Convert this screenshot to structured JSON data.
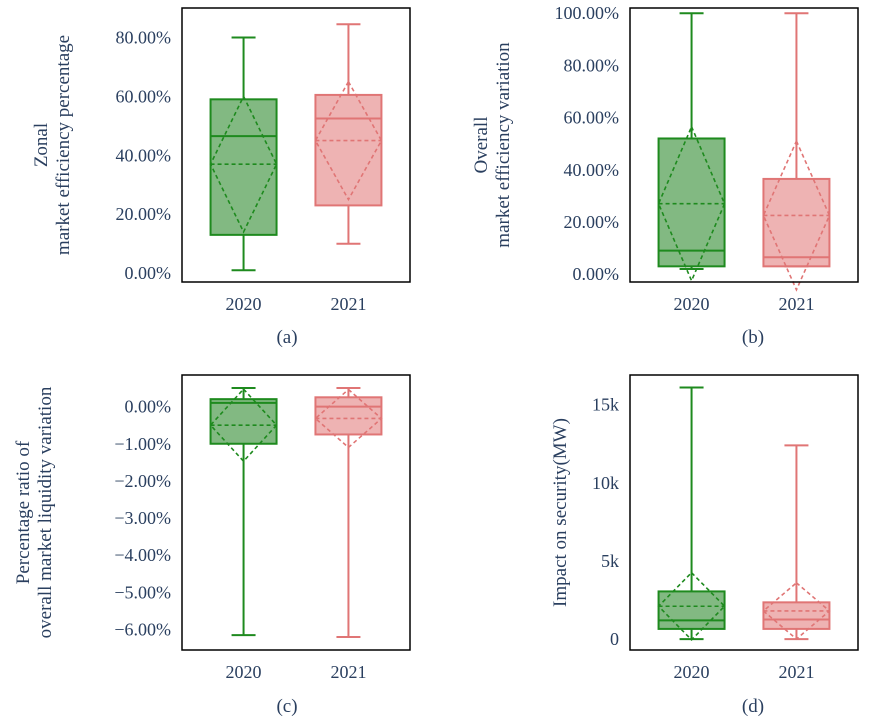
{
  "colors": {
    "text": "#2a3f5f",
    "axis": "#000000",
    "series_2020_line": "#1e8a1e",
    "series_2020_fill": "rgba(46,139,46,0.6)",
    "series_2021_line": "#e07575",
    "series_2021_fill": "rgba(224,117,117,0.55)"
  },
  "chart_data": [
    {
      "type": "box",
      "caption": "(a)",
      "ylabel": [
        "Zonal",
        "market efficiency percentage"
      ],
      "ylim": [
        -0.03,
        0.9
      ],
      "yticks": [
        0,
        0.2,
        0.4,
        0.6,
        0.8
      ],
      "ytick_labels": [
        "0.00%",
        "20.00%",
        "40.00%",
        "60.00%",
        "80.00%"
      ],
      "categories": [
        "2020",
        "2021"
      ],
      "boxes": [
        {
          "name": "2020",
          "min": 0.01,
          "q1": 0.13,
          "median": 0.465,
          "q3": 0.59,
          "max": 0.8,
          "mean": 0.37,
          "sd": 0.23
        },
        {
          "name": "2021",
          "min": 0.1,
          "q1": 0.23,
          "median": 0.525,
          "q3": 0.605,
          "max": 0.845,
          "mean": 0.45,
          "sd": 0.2
        }
      ],
      "grid": false
    },
    {
      "type": "box",
      "caption": "(b)",
      "ylabel": [
        "Overall",
        "market efficiency variation"
      ],
      "ylim": [
        -0.03,
        1.02
      ],
      "yticks": [
        0,
        0.2,
        0.4,
        0.6,
        0.8,
        1.0
      ],
      "ytick_labels": [
        "0.00%",
        "20.00%",
        "40.00%",
        "60.00%",
        "80.00%",
        "100.00%"
      ],
      "categories": [
        "2020",
        "2021"
      ],
      "boxes": [
        {
          "name": "2020",
          "min": 0.02,
          "q1": 0.03,
          "median": 0.09,
          "q3": 0.52,
          "max": 1.0,
          "mean": 0.27,
          "sd": 0.295
        },
        {
          "name": "2021",
          "min": 0.03,
          "q1": 0.03,
          "median": 0.065,
          "q3": 0.365,
          "max": 1.0,
          "mean": 0.225,
          "sd": 0.285
        }
      ],
      "grid": false
    },
    {
      "type": "box",
      "caption": "(c)",
      "ylabel": [
        "Percentage ratio of",
        "overall market liquidity variation"
      ],
      "ylim": [
        -0.0655,
        0.0085
      ],
      "yticks": [
        0,
        -0.01,
        -0.02,
        -0.03,
        -0.04,
        -0.05,
        -0.06
      ],
      "ytick_labels": [
        "0.00%",
        "−1.00%",
        "−2.00%",
        "−3.00%",
        "−4.00%",
        "−5.00%",
        "−6.00%"
      ],
      "categories": [
        "2020",
        "2021"
      ],
      "boxes": [
        {
          "name": "2020",
          "min": -0.0615,
          "q1": -0.01,
          "median": 0.001,
          "q3": 0.002,
          "max": 0.005,
          "mean": -0.005,
          "sd": 0.0097
        },
        {
          "name": "2021",
          "min": -0.062,
          "q1": -0.0075,
          "median": 0.0,
          "q3": 0.0025,
          "max": 0.005,
          "mean": -0.0032,
          "sd": 0.0078
        }
      ],
      "grid": false
    },
    {
      "type": "box",
      "caption": "(d)",
      "ylabel": [
        "Impact on security(MW)"
      ],
      "ylim": [
        -700,
        16900
      ],
      "yticks": [
        0,
        5000,
        10000,
        15000
      ],
      "ytick_labels": [
        "0",
        "5k",
        "10k",
        "15k"
      ],
      "categories": [
        "2020",
        "2021"
      ],
      "boxes": [
        {
          "name": "2020",
          "min": 0,
          "q1": 650,
          "median": 1200,
          "q3": 3050,
          "max": 16100,
          "mean": 2100,
          "sd": 2150
        },
        {
          "name": "2021",
          "min": 0,
          "q1": 650,
          "median": 1250,
          "q3": 2350,
          "max": 12400,
          "mean": 1800,
          "sd": 1800
        }
      ],
      "grid": false
    }
  ]
}
